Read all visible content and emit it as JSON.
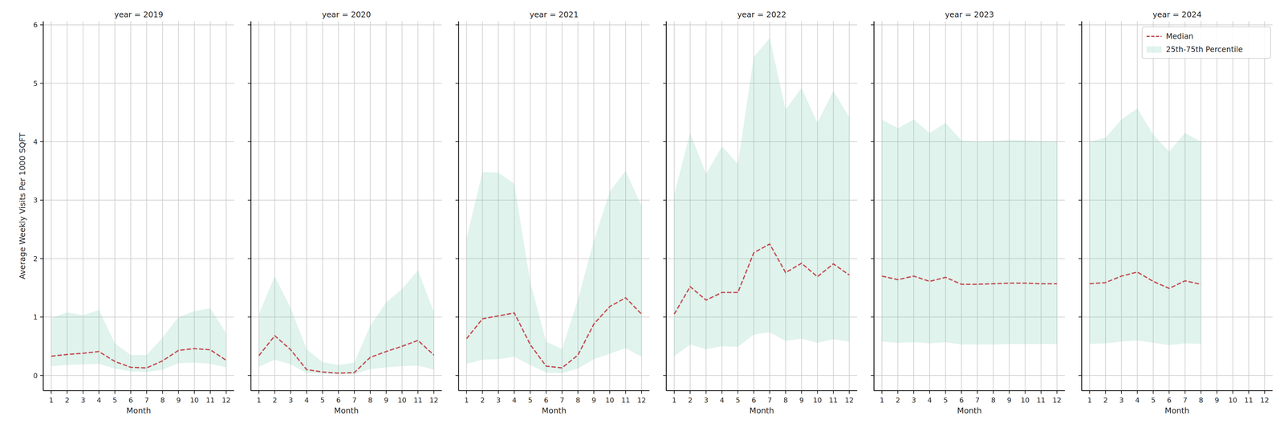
{
  "chart_data": [
    {
      "type": "line",
      "title": "year = 2019",
      "x_label": "Month",
      "y_label": "Average Weekly Visits Per 1000 SQFT",
      "x": [
        1,
        2,
        3,
        4,
        5,
        6,
        7,
        8,
        9,
        10,
        11,
        12
      ],
      "xlim": [
        0.5,
        12.5
      ],
      "xticks": [
        1,
        2,
        3,
        4,
        5,
        6,
        7,
        8,
        9,
        10,
        11,
        12
      ],
      "ylim": [
        -0.26,
        6.06
      ],
      "yticks": [
        0,
        1,
        2,
        3,
        4,
        5,
        6
      ],
      "grid": true,
      "series": [
        {
          "name": "Median",
          "type": "line",
          "line_style": "dashed",
          "color": "#c44e52",
          "values": [
            0.33,
            0.36,
            0.38,
            0.41,
            0.24,
            0.14,
            0.13,
            0.25,
            0.43,
            0.46,
            0.44,
            0.26
          ]
        },
        {
          "name": "25th-75th Percentile",
          "type": "area",
          "color": "#66c2a5",
          "values": [
            0.98,
            1.08,
            1.03,
            1.12,
            0.55,
            0.35,
            0.35,
            0.65,
            1.0,
            1.1,
            1.15,
            0.72
          ],
          "lower": [
            0.16,
            0.18,
            0.19,
            0.2,
            0.12,
            0.07,
            0.06,
            0.1,
            0.21,
            0.22,
            0.2,
            0.14
          ]
        }
      ]
    },
    {
      "type": "line",
      "title": "year = 2020",
      "x_label": "Month",
      "tick_labels": "x",
      "x": [
        1,
        2,
        3,
        4,
        5,
        6,
        7,
        8,
        9,
        10,
        11,
        12
      ],
      "xlim": [
        0.5,
        12.5
      ],
      "xticks": [
        1,
        2,
        3,
        4,
        5,
        6,
        7,
        8,
        9,
        10,
        11,
        12
      ],
      "ylim": [
        -0.26,
        6.06
      ],
      "yticks": [
        0,
        1,
        2,
        3,
        4,
        5,
        6
      ],
      "grid": true,
      "series": [
        {
          "name": "Median",
          "type": "line",
          "line_style": "dashed",
          "color": "#c44e52",
          "values": [
            0.34,
            0.68,
            0.44,
            0.1,
            0.06,
            0.04,
            0.05,
            0.31,
            0.41,
            0.5,
            0.6,
            0.35
          ]
        },
        {
          "name": "25th-75th Percentile",
          "type": "area",
          "color": "#66c2a5",
          "values": [
            1.05,
            1.7,
            1.15,
            0.45,
            0.23,
            0.18,
            0.22,
            0.85,
            1.25,
            1.48,
            1.8,
            1.08
          ],
          "lower": [
            0.15,
            0.27,
            0.19,
            0.04,
            0.03,
            0.02,
            0.02,
            0.11,
            0.14,
            0.16,
            0.17,
            0.1
          ]
        }
      ]
    },
    {
      "type": "line",
      "title": "year = 2021",
      "x_label": "Month",
      "tick_labels": "x",
      "x": [
        1,
        2,
        3,
        4,
        5,
        6,
        7,
        8,
        9,
        10,
        11,
        12
      ],
      "xlim": [
        0.5,
        12.5
      ],
      "xticks": [
        1,
        2,
        3,
        4,
        5,
        6,
        7,
        8,
        9,
        10,
        11,
        12
      ],
      "ylim": [
        -0.26,
        6.06
      ],
      "yticks": [
        0,
        1,
        2,
        3,
        4,
        5,
        6
      ],
      "grid": true,
      "series": [
        {
          "name": "Median",
          "type": "line",
          "line_style": "dashed",
          "color": "#c44e52",
          "values": [
            0.63,
            0.97,
            1.02,
            1.07,
            0.53,
            0.16,
            0.13,
            0.35,
            0.88,
            1.18,
            1.33,
            1.05
          ]
        },
        {
          "name": "25th-75th Percentile",
          "type": "area",
          "color": "#66c2a5",
          "values": [
            2.35,
            3.48,
            3.47,
            3.28,
            1.6,
            0.58,
            0.45,
            1.3,
            2.3,
            3.15,
            3.5,
            2.9
          ],
          "lower": [
            0.2,
            0.27,
            0.28,
            0.32,
            0.18,
            0.05,
            0.04,
            0.12,
            0.28,
            0.37,
            0.47,
            0.32
          ]
        }
      ]
    },
    {
      "type": "line",
      "title": "year = 2022",
      "x_label": "Month",
      "tick_labels": "x",
      "x": [
        1,
        2,
        3,
        4,
        5,
        6,
        7,
        8,
        9,
        10,
        11,
        12
      ],
      "xlim": [
        0.5,
        12.5
      ],
      "xticks": [
        1,
        2,
        3,
        4,
        5,
        6,
        7,
        8,
        9,
        10,
        11,
        12
      ],
      "ylim": [
        -0.26,
        6.06
      ],
      "yticks": [
        0,
        1,
        2,
        3,
        4,
        5,
        6
      ],
      "grid": true,
      "series": [
        {
          "name": "Median",
          "type": "line",
          "line_style": "dashed",
          "color": "#c44e52",
          "values": [
            1.05,
            1.52,
            1.29,
            1.42,
            1.42,
            2.1,
            2.25,
            1.76,
            1.92,
            1.69,
            1.91,
            1.72
          ]
        },
        {
          "name": "25th-75th Percentile",
          "type": "area",
          "color": "#66c2a5",
          "values": [
            3.1,
            4.15,
            3.45,
            3.92,
            3.62,
            5.45,
            5.77,
            4.55,
            4.92,
            4.32,
            4.87,
            4.42
          ],
          "lower": [
            0.33,
            0.53,
            0.45,
            0.5,
            0.49,
            0.7,
            0.74,
            0.59,
            0.63,
            0.56,
            0.62,
            0.58
          ]
        }
      ]
    },
    {
      "type": "line",
      "title": "year = 2023",
      "x_label": "Month",
      "tick_labels": "x",
      "x": [
        1,
        2,
        3,
        4,
        5,
        6,
        7,
        8,
        9,
        10,
        11,
        12
      ],
      "xlim": [
        0.5,
        12.5
      ],
      "xticks": [
        1,
        2,
        3,
        4,
        5,
        6,
        7,
        8,
        9,
        10,
        11,
        12
      ],
      "ylim": [
        -0.26,
        6.06
      ],
      "yticks": [
        0,
        1,
        2,
        3,
        4,
        5,
        6
      ],
      "grid": true,
      "series": [
        {
          "name": "Median",
          "type": "line",
          "line_style": "dashed",
          "color": "#c44e52",
          "values": [
            1.7,
            1.64,
            1.7,
            1.61,
            1.68,
            1.56,
            1.56,
            1.57,
            1.58,
            1.58,
            1.57,
            1.57
          ]
        },
        {
          "name": "25th-75th Percentile",
          "type": "area",
          "color": "#66c2a5",
          "values": [
            4.38,
            4.23,
            4.38,
            4.15,
            4.32,
            4.02,
            4.0,
            4.01,
            4.03,
            4.02,
            4.01,
            4.0
          ],
          "lower": [
            0.58,
            0.56,
            0.57,
            0.55,
            0.57,
            0.53,
            0.53,
            0.53,
            0.54,
            0.54,
            0.54,
            0.54
          ]
        }
      ]
    },
    {
      "type": "line",
      "title": "year = 2024",
      "x_label": "Month",
      "tick_labels": "x",
      "legend": "upper right",
      "x": [
        1,
        2,
        3,
        4,
        5,
        6,
        7,
        8,
        9,
        10,
        11,
        12
      ],
      "xlim": [
        0.5,
        12.5
      ],
      "xticks": [
        1,
        2,
        3,
        4,
        5,
        6,
        7,
        8,
        9,
        10,
        11,
        12
      ],
      "ylim": [
        -0.26,
        6.06
      ],
      "yticks": [
        0,
        1,
        2,
        3,
        4,
        5,
        6
      ],
      "grid": true,
      "series": [
        {
          "name": "Median",
          "type": "line",
          "line_style": "dashed",
          "color": "#c44e52",
          "values": [
            1.57,
            1.59,
            1.7,
            1.77,
            1.61,
            1.49,
            1.62,
            1.56,
            null,
            null,
            null,
            null
          ]
        },
        {
          "name": "25th-75th Percentile",
          "type": "area",
          "color": "#66c2a5",
          "values": [
            4.0,
            4.07,
            4.38,
            4.57,
            4.12,
            3.83,
            4.15,
            4.0,
            null,
            null,
            null,
            null
          ],
          "lower": [
            0.54,
            0.55,
            0.58,
            0.6,
            0.56,
            0.52,
            0.55,
            0.54,
            null,
            null,
            null,
            null
          ]
        }
      ]
    }
  ]
}
